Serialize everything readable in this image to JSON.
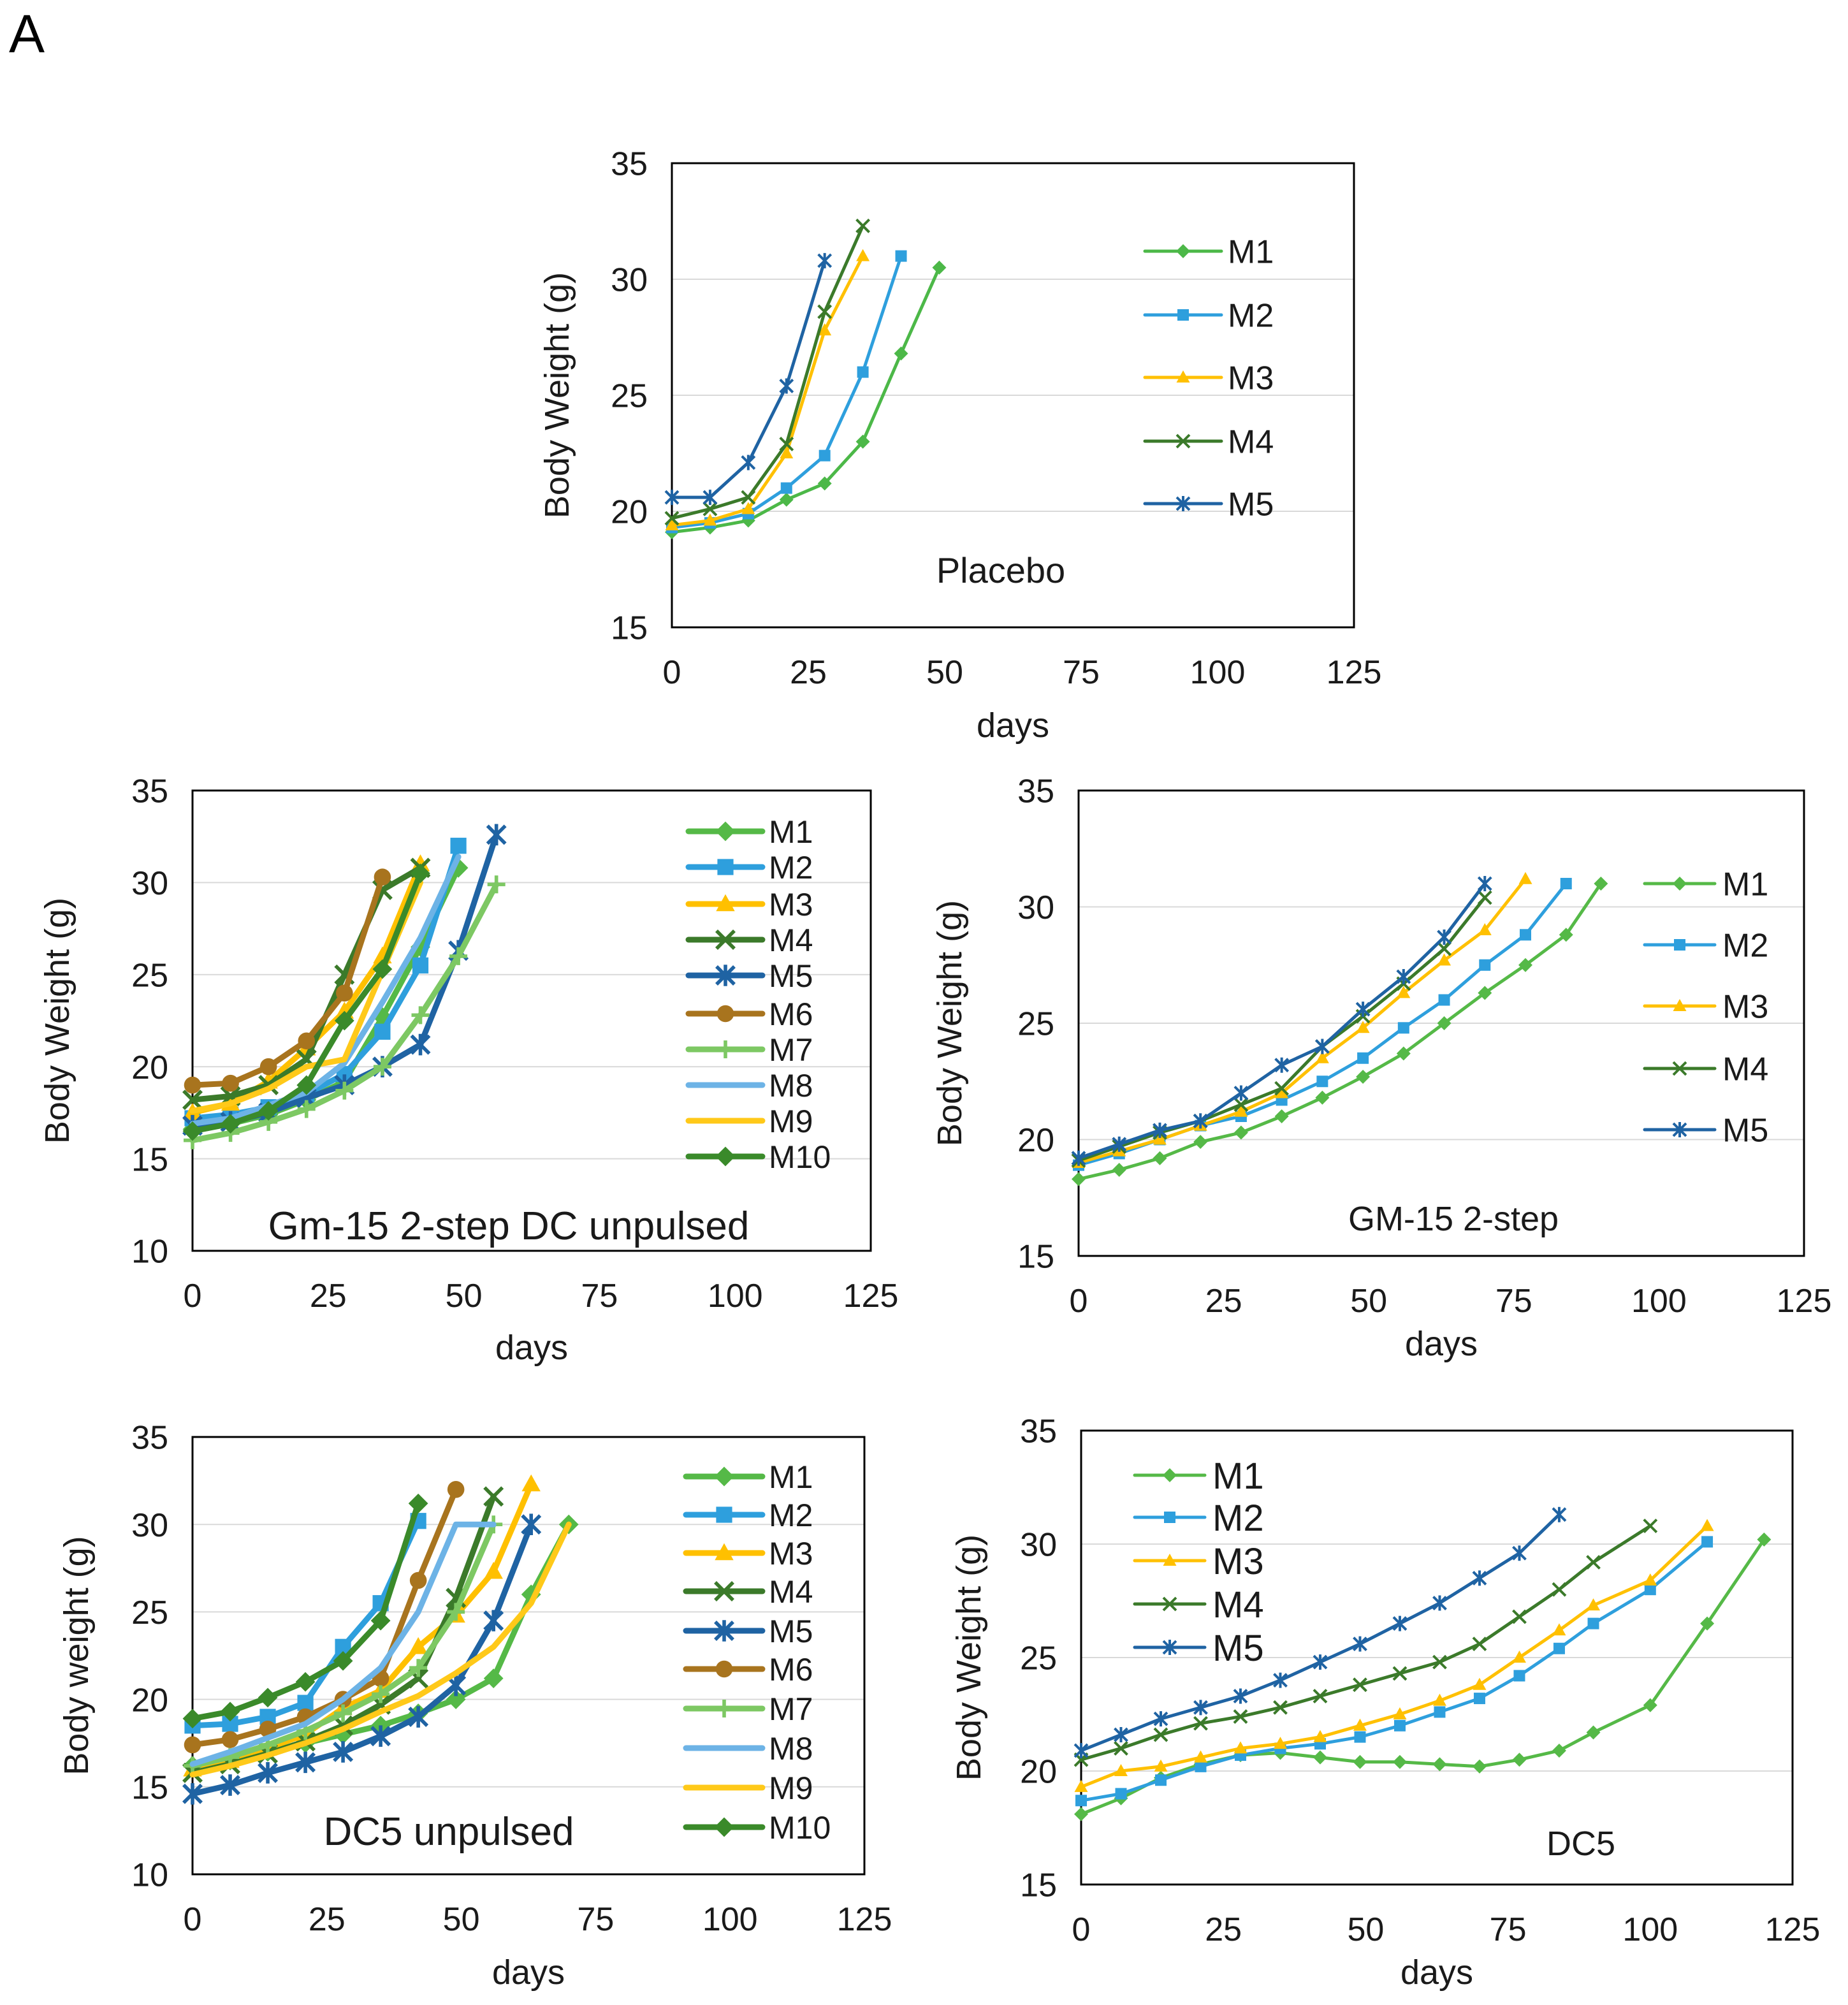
{
  "panel_label": "A",
  "chart_data": [
    {
      "type": "line",
      "title": "Placebo",
      "xlabel": "days",
      "ylabel": "Body Weight (g)",
      "xlim": [
        0,
        125
      ],
      "ylim": [
        15,
        35
      ],
      "xticks": [
        0,
        25,
        50,
        75,
        100,
        125
      ],
      "yticks": [
        15,
        20,
        25,
        30,
        35
      ],
      "grid": true,
      "legend": "right",
      "series": [
        {
          "name": "M1",
          "color": "#4CB848",
          "marker": "diamond",
          "x": [
            0,
            7,
            14,
            21,
            28,
            35,
            42,
            49
          ],
          "y": [
            19.1,
            19.3,
            19.6,
            20.5,
            21.2,
            23.0,
            26.8,
            30.5
          ]
        },
        {
          "name": "M2",
          "color": "#2E9FDD",
          "marker": "square",
          "x": [
            0,
            7,
            14,
            21,
            28,
            35,
            42
          ],
          "y": [
            19.3,
            19.5,
            19.9,
            21.0,
            22.4,
            26.0,
            31.0
          ]
        },
        {
          "name": "M3",
          "color": "#FFC000",
          "marker": "triangle",
          "x": [
            0,
            7,
            14,
            21,
            28,
            35
          ],
          "y": [
            19.4,
            19.6,
            20.1,
            22.5,
            27.8,
            31.0
          ]
        },
        {
          "name": "M4",
          "color": "#3B7A2A",
          "marker": "x",
          "x": [
            0,
            7,
            14,
            21,
            28,
            35
          ],
          "y": [
            19.7,
            20.1,
            20.6,
            22.9,
            28.6,
            32.3
          ]
        },
        {
          "name": "M5",
          "color": "#1F63A3",
          "marker": "star",
          "x": [
            0,
            7,
            14,
            21,
            28
          ],
          "y": [
            20.6,
            20.6,
            22.1,
            25.4,
            30.8
          ]
        }
      ]
    },
    {
      "type": "line",
      "title": "Gm-15 2-step DC unpulsed",
      "xlabel": "days",
      "ylabel": "Body Weight (g)",
      "xlim": [
        0,
        125
      ],
      "ylim": [
        10,
        35
      ],
      "xticks": [
        0,
        25,
        50,
        75,
        100,
        125
      ],
      "yticks": [
        10,
        15,
        20,
        25,
        30,
        35
      ],
      "grid": true,
      "legend": "right",
      "series": [
        {
          "name": "M1",
          "color": "#55B947",
          "marker": "diamond",
          "x": [
            0,
            7,
            14,
            21,
            28,
            35,
            42,
            49
          ],
          "y": [
            16.6,
            16.9,
            17.4,
            18.2,
            19.2,
            22.7,
            26.5,
            30.8
          ]
        },
        {
          "name": "M2",
          "color": "#2E9FDD",
          "marker": "square",
          "x": [
            0,
            7,
            14,
            21,
            28,
            35,
            42,
            49
          ],
          "y": [
            17.2,
            17.4,
            17.8,
            18.5,
            19.6,
            21.9,
            25.5,
            32.0
          ]
        },
        {
          "name": "M3",
          "color": "#FFC000",
          "marker": "triangle",
          "x": [
            0,
            7,
            14,
            21,
            28,
            35,
            42
          ],
          "y": [
            17.5,
            18.0,
            19.2,
            21.0,
            23.0,
            26.0,
            31.0
          ]
        },
        {
          "name": "M4",
          "color": "#3B7A2A",
          "marker": "x",
          "x": [
            0,
            7,
            14,
            21,
            28,
            35,
            42
          ],
          "y": [
            18.2,
            18.4,
            19.0,
            20.4,
            25.0,
            29.6,
            30.8
          ]
        },
        {
          "name": "M5",
          "color": "#1F63A3",
          "marker": "star",
          "x": [
            0,
            7,
            14,
            21,
            28,
            35,
            42,
            49,
            56
          ],
          "y": [
            16.8,
            17.0,
            17.5,
            18.3,
            19.0,
            20.0,
            21.2,
            26.3,
            32.6
          ]
        },
        {
          "name": "M6",
          "color": "#A8741E",
          "marker": "circle",
          "x": [
            0,
            7,
            14,
            21,
            28,
            35
          ],
          "y": [
            19.0,
            19.1,
            20.0,
            21.4,
            24.0,
            30.3
          ]
        },
        {
          "name": "M7",
          "color": "#7DC863",
          "marker": "plus",
          "x": [
            0,
            7,
            14,
            21,
            28,
            35,
            42,
            49,
            56
          ],
          "y": [
            16.0,
            16.4,
            17.0,
            17.7,
            18.7,
            20.0,
            22.8,
            26.0,
            29.9
          ]
        },
        {
          "name": "M8",
          "color": "#6DB3E6",
          "marker": "none",
          "x": [
            0,
            7,
            14,
            21,
            28,
            35,
            42,
            49
          ],
          "y": [
            16.9,
            17.2,
            17.9,
            18.6,
            20.2,
            23.5,
            27.0,
            31.4
          ]
        },
        {
          "name": "M9",
          "color": "#FFC919",
          "marker": "none",
          "x": [
            0,
            7,
            14,
            21,
            28,
            35,
            42
          ],
          "y": [
            17.6,
            18.0,
            18.8,
            20.0,
            20.4,
            25.2,
            30.0
          ]
        },
        {
          "name": "M10",
          "color": "#3A8A2A",
          "marker": "diamond",
          "x": [
            0,
            7,
            14,
            21,
            28,
            35,
            42
          ],
          "y": [
            16.5,
            16.9,
            17.6,
            19.0,
            22.5,
            25.3,
            30.5
          ]
        }
      ]
    },
    {
      "type": "line",
      "title": "GM-15 2-step",
      "xlabel": "days",
      "ylabel": "Body Weight (g)",
      "xlim": [
        0,
        125
      ],
      "ylim": [
        15,
        35
      ],
      "xticks": [
        0,
        25,
        50,
        75,
        100,
        125
      ],
      "yticks": [
        15,
        20,
        25,
        30,
        35
      ],
      "grid": true,
      "legend": "right",
      "series": [
        {
          "name": "M1",
          "color": "#55B947",
          "marker": "diamond",
          "x": [
            0,
            7,
            14,
            21,
            28,
            35,
            42,
            49,
            56,
            63,
            70,
            77,
            84,
            90
          ],
          "y": [
            18.3,
            18.7,
            19.2,
            19.9,
            20.3,
            21.0,
            21.8,
            22.7,
            23.7,
            25.0,
            26.3,
            27.5,
            28.8,
            31.0
          ]
        },
        {
          "name": "M2",
          "color": "#2E9FDD",
          "marker": "square",
          "x": [
            0,
            7,
            14,
            21,
            28,
            35,
            42,
            49,
            56,
            63,
            70,
            77,
            84
          ],
          "y": [
            18.9,
            19.4,
            20.0,
            20.6,
            21.0,
            21.7,
            22.5,
            23.5,
            24.8,
            26.0,
            27.5,
            28.8,
            31.0
          ]
        },
        {
          "name": "M3",
          "color": "#FFC000",
          "marker": "triangle",
          "x": [
            0,
            7,
            14,
            21,
            28,
            35,
            42,
            49,
            56,
            63,
            70,
            77
          ],
          "y": [
            19.0,
            19.5,
            20.0,
            20.6,
            21.2,
            22.0,
            23.5,
            24.8,
            26.3,
            27.7,
            29.0,
            31.2
          ]
        },
        {
          "name": "M4",
          "color": "#3B7A2A",
          "marker": "x",
          "x": [
            0,
            7,
            14,
            21,
            28,
            35,
            42,
            49,
            56,
            63,
            70
          ],
          "y": [
            19.1,
            19.7,
            20.3,
            20.8,
            21.5,
            22.2,
            24.0,
            25.3,
            26.7,
            28.2,
            30.4
          ]
        },
        {
          "name": "M5",
          "color": "#1F63A3",
          "marker": "star",
          "x": [
            0,
            7,
            14,
            21,
            28,
            35,
            42,
            49,
            56,
            63,
            70
          ],
          "y": [
            19.2,
            19.8,
            20.4,
            20.8,
            22.0,
            23.2,
            24.0,
            25.6,
            27.0,
            28.7,
            31.0
          ]
        }
      ]
    },
    {
      "type": "line",
      "title": "DC5 unpulsed",
      "xlabel": "days",
      "ylabel": "Body weight (g)",
      "xlim": [
        0,
        125
      ],
      "ylim": [
        10,
        35
      ],
      "xticks": [
        0,
        25,
        50,
        75,
        100,
        125
      ],
      "yticks": [
        10,
        15,
        20,
        25,
        30,
        35
      ],
      "grid": true,
      "legend": "right",
      "series": [
        {
          "name": "M1",
          "color": "#55B947",
          "marker": "diamond",
          "x": [
            0,
            7,
            14,
            21,
            28,
            35,
            42,
            49,
            56,
            63,
            70
          ],
          "y": [
            16.2,
            16.5,
            17.0,
            17.5,
            18.0,
            18.5,
            19.2,
            20.0,
            21.2,
            26.0,
            30.0
          ]
        },
        {
          "name": "M2",
          "color": "#2E9FDD",
          "marker": "square",
          "x": [
            0,
            7,
            14,
            21,
            28,
            35,
            42
          ],
          "y": [
            18.5,
            18.6,
            19.0,
            19.8,
            23.0,
            25.5,
            30.2
          ]
        },
        {
          "name": "M3",
          "color": "#FFC000",
          "marker": "triangle",
          "x": [
            0,
            7,
            14,
            21,
            28,
            35,
            42,
            49,
            56,
            63
          ],
          "y": [
            16.0,
            16.5,
            17.2,
            18.0,
            19.5,
            20.5,
            23.0,
            24.8,
            27.3,
            32.3
          ]
        },
        {
          "name": "M4",
          "color": "#3B7A2A",
          "marker": "x",
          "x": [
            0,
            7,
            14,
            21,
            28,
            35,
            42,
            49,
            56
          ],
          "y": [
            15.8,
            16.3,
            16.9,
            17.6,
            18.5,
            19.7,
            21.2,
            25.8,
            31.6
          ]
        },
        {
          "name": "M5",
          "color": "#1F63A3",
          "marker": "star",
          "x": [
            0,
            7,
            14,
            21,
            28,
            35,
            42,
            49,
            56,
            63
          ],
          "y": [
            14.6,
            15.1,
            15.8,
            16.4,
            17.0,
            17.9,
            19.0,
            20.8,
            24.5,
            30.0
          ]
        },
        {
          "name": "M6",
          "color": "#A8741E",
          "marker": "circle",
          "x": [
            0,
            7,
            14,
            21,
            28,
            35,
            42,
            49
          ],
          "y": [
            17.4,
            17.7,
            18.3,
            19.0,
            20.0,
            21.2,
            26.8,
            32.0
          ]
        },
        {
          "name": "M7",
          "color": "#7DC863",
          "marker": "plus",
          "x": [
            0,
            7,
            14,
            21,
            28,
            35,
            42,
            49,
            56
          ],
          "y": [
            16.2,
            16.7,
            17.4,
            18.2,
            19.2,
            20.3,
            21.8,
            25.0,
            30.0
          ]
        },
        {
          "name": "M8",
          "color": "#6DB3E6",
          "marker": "none",
          "x": [
            0,
            7,
            14,
            21,
            28,
            35,
            42,
            49,
            56
          ],
          "y": [
            16.3,
            17.0,
            17.8,
            18.6,
            20.0,
            21.8,
            25.0,
            30.0,
            30.0
          ]
        },
        {
          "name": "M9",
          "color": "#FFC919",
          "marker": "none",
          "x": [
            0,
            7,
            14,
            21,
            28,
            35,
            42,
            49,
            56,
            63,
            70
          ],
          "y": [
            15.7,
            16.2,
            16.8,
            17.5,
            18.3,
            19.3,
            20.2,
            21.5,
            23.0,
            25.5,
            30.0
          ]
        },
        {
          "name": "M10",
          "color": "#3A8A2A",
          "marker": "diamond",
          "x": [
            0,
            7,
            14,
            21,
            28,
            35,
            42
          ],
          "y": [
            18.9,
            19.3,
            20.1,
            21.0,
            22.2,
            24.5,
            31.2
          ]
        }
      ]
    },
    {
      "type": "line",
      "title": "DC5",
      "xlabel": "days",
      "ylabel": "Body Weight (g)",
      "xlim": [
        0,
        125
      ],
      "ylim": [
        15,
        35
      ],
      "xticks": [
        0,
        25,
        50,
        75,
        100,
        125
      ],
      "yticks": [
        15,
        20,
        25,
        30,
        35
      ],
      "grid": true,
      "legend": "top-left",
      "series": [
        {
          "name": "M1",
          "color": "#55B947",
          "marker": "diamond",
          "x": [
            0,
            7,
            14,
            21,
            28,
            35,
            42,
            49,
            56,
            63,
            70,
            77,
            84,
            90,
            100,
            110,
            120
          ],
          "y": [
            18.1,
            18.8,
            19.7,
            20.3,
            20.7,
            20.8,
            20.6,
            20.4,
            20.4,
            20.3,
            20.2,
            20.5,
            20.9,
            21.7,
            22.9,
            26.5,
            30.2
          ]
        },
        {
          "name": "M2",
          "color": "#2E9FDD",
          "marker": "square",
          "x": [
            0,
            7,
            14,
            21,
            28,
            35,
            42,
            49,
            56,
            63,
            70,
            77,
            84,
            90,
            100,
            110
          ],
          "y": [
            18.7,
            19.0,
            19.6,
            20.2,
            20.7,
            21.0,
            21.2,
            21.5,
            22.0,
            22.6,
            23.2,
            24.2,
            25.4,
            26.5,
            28.0,
            30.1
          ]
        },
        {
          "name": "M3",
          "color": "#FFC000",
          "marker": "triangle",
          "x": [
            0,
            7,
            14,
            21,
            28,
            35,
            42,
            49,
            56,
            63,
            70,
            77,
            84,
            90,
            100,
            110
          ],
          "y": [
            19.3,
            20.0,
            20.2,
            20.6,
            21.0,
            21.2,
            21.5,
            22.0,
            22.5,
            23.1,
            23.8,
            25.0,
            26.2,
            27.3,
            28.4,
            30.8
          ]
        },
        {
          "name": "M4",
          "color": "#3B7A2A",
          "marker": "x",
          "x": [
            0,
            7,
            14,
            21,
            28,
            35,
            42,
            49,
            56,
            63,
            70,
            77,
            84,
            90,
            100
          ],
          "y": [
            20.5,
            21.0,
            21.6,
            22.1,
            22.4,
            22.8,
            23.3,
            23.8,
            24.3,
            24.8,
            25.6,
            26.8,
            28.0,
            29.2,
            30.8
          ]
        },
        {
          "name": "M5",
          "color": "#1F63A3",
          "marker": "star",
          "x": [
            0,
            7,
            14,
            21,
            28,
            35,
            42,
            49,
            56,
            63,
            70,
            77,
            84
          ],
          "y": [
            20.9,
            21.6,
            22.3,
            22.8,
            23.3,
            24.0,
            24.8,
            25.6,
            26.5,
            27.4,
            28.5,
            29.6,
            31.3
          ]
        }
      ]
    }
  ]
}
